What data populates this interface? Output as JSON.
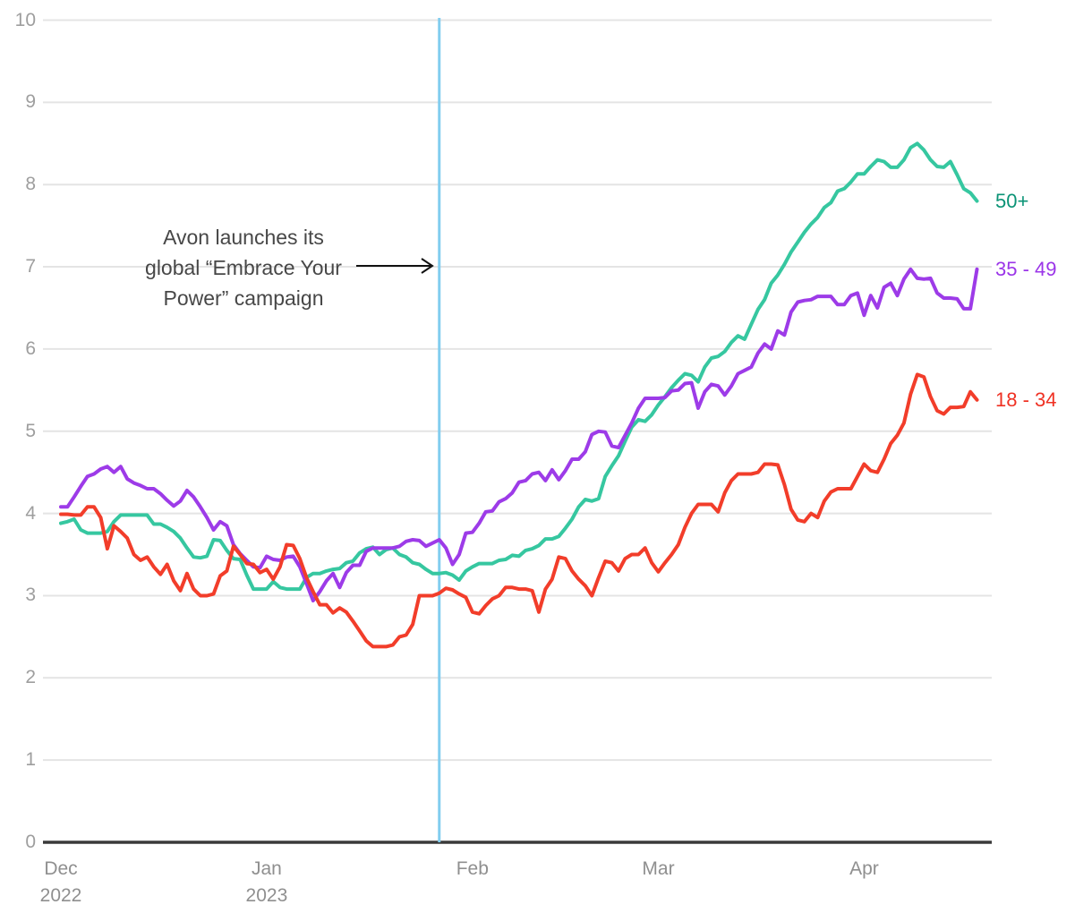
{
  "chart_data": {
    "type": "line",
    "title": "",
    "x_axis": {
      "unit": "days since Dec 1, 2022",
      "total_days": 138,
      "ticks": [
        {
          "label": "Dec",
          "sublabel": "2022",
          "day": 0
        },
        {
          "label": "Jan",
          "sublabel": "2023",
          "day": 31
        },
        {
          "label": "Feb",
          "sublabel": "",
          "day": 62
        },
        {
          "label": "Mar",
          "sublabel": "",
          "day": 90
        },
        {
          "label": "Apr",
          "sublabel": "",
          "day": 121
        }
      ]
    },
    "y_axis": {
      "min": 0,
      "max": 10,
      "ticks": [
        0,
        1,
        2,
        3,
        4,
        5,
        6,
        7,
        8,
        9,
        10
      ]
    },
    "event_line": {
      "day": 57,
      "color": "#82cdef"
    },
    "legend_position": "right-of-line-ends",
    "grid": true,
    "series": [
      {
        "name": "50+",
        "color": "#36c7a0",
        "label_color": "#0b9376",
        "values": [
          3.88,
          3.9,
          3.93,
          3.8,
          3.76,
          3.76,
          3.76,
          3.78,
          3.9,
          3.98,
          3.98,
          3.98,
          3.98,
          3.98,
          3.87,
          3.87,
          3.83,
          3.78,
          3.7,
          3.58,
          3.47,
          3.46,
          3.48,
          3.68,
          3.67,
          3.55,
          3.45,
          3.44,
          3.25,
          3.08,
          3.08,
          3.08,
          3.17,
          3.1,
          3.08,
          3.08,
          3.08,
          3.22,
          3.27,
          3.27,
          3.3,
          3.32,
          3.33,
          3.4,
          3.42,
          3.52,
          3.57,
          3.59,
          3.5,
          3.56,
          3.58,
          3.5,
          3.47,
          3.4,
          3.38,
          3.32,
          3.27,
          3.27,
          3.28,
          3.25,
          3.19,
          3.3,
          3.35,
          3.39,
          3.39,
          3.39,
          3.43,
          3.44,
          3.49,
          3.48,
          3.55,
          3.57,
          3.61,
          3.69,
          3.69,
          3.72,
          3.82,
          3.93,
          4.08,
          4.17,
          4.15,
          4.18,
          4.45,
          4.58,
          4.7,
          4.88,
          5.05,
          5.14,
          5.12,
          5.2,
          5.32,
          5.42,
          5.53,
          5.62,
          5.7,
          5.68,
          5.6,
          5.78,
          5.89,
          5.91,
          5.97,
          6.08,
          6.16,
          6.12,
          6.3,
          6.48,
          6.6,
          6.8,
          6.9,
          7.03,
          7.18,
          7.3,
          7.42,
          7.52,
          7.6,
          7.72,
          7.78,
          7.92,
          7.95,
          8.03,
          8.13,
          8.13,
          8.22,
          8.3,
          8.28,
          8.21,
          8.21,
          8.3,
          8.45,
          8.5,
          8.42,
          8.3,
          8.22,
          8.21,
          8.28,
          8.12,
          7.95,
          7.9,
          7.8
        ]
      },
      {
        "name": "35 - 49",
        "color": "#9d3be8",
        "label_color": "#9b35e8",
        "values": [
          4.08,
          4.08,
          4.2,
          4.33,
          4.45,
          4.48,
          4.54,
          4.57,
          4.5,
          4.57,
          4.42,
          4.37,
          4.34,
          4.3,
          4.3,
          4.24,
          4.16,
          4.09,
          4.15,
          4.28,
          4.2,
          4.08,
          3.95,
          3.8,
          3.9,
          3.85,
          3.62,
          3.51,
          3.43,
          3.35,
          3.34,
          3.48,
          3.44,
          3.43,
          3.47,
          3.48,
          3.35,
          3.15,
          2.94,
          3.05,
          3.18,
          3.27,
          3.1,
          3.28,
          3.37,
          3.37,
          3.54,
          3.58,
          3.58,
          3.58,
          3.58,
          3.6,
          3.66,
          3.68,
          3.67,
          3.6,
          3.64,
          3.68,
          3.58,
          3.38,
          3.5,
          3.76,
          3.77,
          3.88,
          4.02,
          4.03,
          4.14,
          4.18,
          4.25,
          4.38,
          4.4,
          4.48,
          4.5,
          4.4,
          4.53,
          4.41,
          4.52,
          4.66,
          4.66,
          4.75,
          4.96,
          5.0,
          4.99,
          4.82,
          4.8,
          4.95,
          5.1,
          5.28,
          5.4,
          5.4,
          5.4,
          5.41,
          5.49,
          5.5,
          5.58,
          5.59,
          5.28,
          5.48,
          5.57,
          5.55,
          5.44,
          5.55,
          5.7,
          5.74,
          5.78,
          5.95,
          6.06,
          6.0,
          6.22,
          6.17,
          6.45,
          6.57,
          6.59,
          6.6,
          6.64,
          6.64,
          6.64,
          6.54,
          6.54,
          6.65,
          6.68,
          6.41,
          6.65,
          6.5,
          6.75,
          6.8,
          6.65,
          6.85,
          6.97,
          6.86,
          6.85,
          6.86,
          6.68,
          6.62,
          6.62,
          6.61,
          6.49,
          6.49,
          6.97
        ]
      },
      {
        "name": "18 - 34",
        "color": "#f23d2a",
        "label_color": "#ef3123",
        "values": [
          3.99,
          3.99,
          3.98,
          3.98,
          4.08,
          4.08,
          3.95,
          3.57,
          3.85,
          3.78,
          3.7,
          3.5,
          3.43,
          3.47,
          3.35,
          3.26,
          3.38,
          3.18,
          3.06,
          3.27,
          3.08,
          3.0,
          3.0,
          3.02,
          3.24,
          3.3,
          3.6,
          3.5,
          3.39,
          3.38,
          3.28,
          3.32,
          3.2,
          3.35,
          3.62,
          3.61,
          3.45,
          3.22,
          3.05,
          2.89,
          2.89,
          2.79,
          2.85,
          2.8,
          2.69,
          2.57,
          2.45,
          2.38,
          2.38,
          2.38,
          2.4,
          2.5,
          2.52,
          2.65,
          3.0,
          3.0,
          3.0,
          3.03,
          3.09,
          3.07,
          3.02,
          2.98,
          2.8,
          2.78,
          2.88,
          2.96,
          3.0,
          3.1,
          3.1,
          3.08,
          3.08,
          3.06,
          2.8,
          3.08,
          3.2,
          3.47,
          3.45,
          3.3,
          3.2,
          3.12,
          3.0,
          3.22,
          3.42,
          3.4,
          3.3,
          3.45,
          3.5,
          3.5,
          3.58,
          3.4,
          3.29,
          3.4,
          3.5,
          3.62,
          3.83,
          4.0,
          4.11,
          4.11,
          4.11,
          4.02,
          4.25,
          4.4,
          4.48,
          4.48,
          4.48,
          4.5,
          4.6,
          4.6,
          4.59,
          4.35,
          4.05,
          3.92,
          3.9,
          4.0,
          3.95,
          4.15,
          4.26,
          4.3,
          4.3,
          4.3,
          4.45,
          4.6,
          4.52,
          4.5,
          4.66,
          4.85,
          4.95,
          5.1,
          5.45,
          5.69,
          5.66,
          5.42,
          5.25,
          5.21,
          5.29,
          5.29,
          5.3,
          5.48,
          5.38
        ]
      }
    ]
  },
  "annotation": {
    "lines": [
      "Avon launches its",
      "global “Embrace Your",
      "Power” campaign"
    ]
  },
  "colors": {
    "grid": "#e4e4e4",
    "axis": "#3a3a3a",
    "y_tick_text": "#9e9e9e",
    "x_tick_text": "#8f8f8f",
    "annotation_text": "#474747",
    "arrow": "#111111",
    "background": "#ffffff"
  }
}
